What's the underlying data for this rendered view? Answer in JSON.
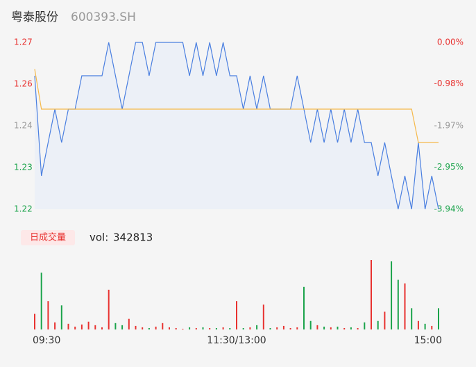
{
  "header": {
    "name": "粤泰股份",
    "code": "600393.SH"
  },
  "chart_data": [
    {
      "type": "line",
      "x": [
        0,
        4,
        8,
        12,
        16,
        20,
        24,
        28,
        32,
        36,
        40,
        44,
        48,
        52,
        56,
        60,
        64,
        68,
        72,
        76,
        80,
        84,
        88,
        92,
        96,
        100,
        104,
        108,
        112,
        116,
        120,
        124,
        128,
        132,
        136,
        140,
        144,
        148,
        152,
        156,
        160,
        164,
        168,
        172,
        176,
        180,
        184,
        188,
        192,
        196,
        200,
        204,
        208,
        212,
        216,
        220,
        224,
        228,
        232,
        236,
        240
      ],
      "xlim": [
        0,
        240
      ],
      "ylim": [
        1.22,
        1.27
      ],
      "yticks": [
        {
          "value": 1.27,
          "label": "1.27"
        },
        {
          "value": 1.2575,
          "label": "1.26"
        },
        {
          "value": 1.245,
          "label": "1.24"
        },
        {
          "value": 1.2325,
          "label": "1.23"
        },
        {
          "value": 1.22,
          "label": "1.22"
        }
      ],
      "y2lim": [
        -3.94,
        0
      ],
      "y2ticks": [
        {
          "value": 0,
          "label": "0.00%"
        },
        {
          "value": -0.98,
          "label": "-0.98%"
        },
        {
          "value": -1.97,
          "label": "-1.97%"
        },
        {
          "value": -2.95,
          "label": "-2.95%"
        },
        {
          "value": -3.94,
          "label": "-3.94%"
        }
      ],
      "tick_colors": [
        "#e8312f",
        "#e8312f",
        "#999999",
        "#1aa34a",
        "#1aa34a"
      ],
      "series": [
        {
          "color": "#4a7fe0",
          "values": [
            1.26,
            1.23,
            1.24,
            1.25,
            1.24,
            1.25,
            1.25,
            1.26,
            1.26,
            1.26,
            1.26,
            1.27,
            1.26,
            1.25,
            1.26,
            1.27,
            1.27,
            1.26,
            1.27,
            1.27,
            1.27,
            1.27,
            1.27,
            1.26,
            1.27,
            1.26,
            1.27,
            1.26,
            1.27,
            1.26,
            1.26,
            1.25,
            1.26,
            1.25,
            1.26,
            1.25,
            1.25,
            1.25,
            1.25,
            1.26,
            1.25,
            1.24,
            1.25,
            1.24,
            1.25,
            1.24,
            1.25,
            1.24,
            1.25,
            1.24,
            1.24,
            1.23,
            1.24,
            1.23,
            1.22,
            1.23,
            1.22,
            1.24,
            1.22,
            1.23,
            1.22
          ]
        },
        {
          "color": "#f5b94a",
          "values": [
            1.262,
            1.25,
            1.25,
            1.25,
            1.25,
            1.25,
            1.25,
            1.25,
            1.25,
            1.25,
            1.25,
            1.25,
            1.25,
            1.25,
            1.25,
            1.25,
            1.25,
            1.25,
            1.25,
            1.25,
            1.25,
            1.25,
            1.25,
            1.25,
            1.25,
            1.25,
            1.25,
            1.25,
            1.25,
            1.25,
            1.25,
            1.25,
            1.25,
            1.25,
            1.25,
            1.25,
            1.25,
            1.25,
            1.25,
            1.25,
            1.25,
            1.25,
            1.25,
            1.25,
            1.25,
            1.25,
            1.25,
            1.25,
            1.25,
            1.25,
            1.25,
            1.25,
            1.25,
            1.25,
            1.25,
            1.25,
            1.25,
            1.24,
            1.24,
            1.24,
            1.24
          ]
        }
      ]
    },
    {
      "type": "bar",
      "legend_label": "日成交量",
      "total_label": "vol:",
      "total_volume": 342813,
      "x": [
        0,
        4,
        8,
        12,
        16,
        20,
        24,
        28,
        32,
        36,
        40,
        44,
        48,
        52,
        56,
        60,
        64,
        68,
        72,
        76,
        80,
        84,
        88,
        92,
        96,
        100,
        104,
        108,
        112,
        116,
        120,
        124,
        128,
        132,
        136,
        140,
        144,
        148,
        152,
        156,
        160,
        164,
        168,
        172,
        176,
        180,
        184,
        188,
        192,
        196,
        200,
        204,
        208,
        212,
        216,
        220,
        224,
        228,
        232,
        236,
        240
      ],
      "xlim": [
        0,
        240
      ],
      "xticks": [
        {
          "value": 0,
          "label": "09:30"
        },
        {
          "value": 120,
          "label": "11:30/13:00"
        },
        {
          "value": 240,
          "label": "15:00"
        }
      ],
      "values": [
        2200,
        8000,
        4000,
        1000,
        3400,
        800,
        400,
        700,
        1100,
        600,
        300,
        5600,
        900,
        600,
        1500,
        500,
        300,
        200,
        400,
        900,
        300,
        200,
        100,
        300,
        200,
        300,
        200,
        200,
        300,
        200,
        4000,
        200,
        300,
        600,
        3500,
        200,
        300,
        500,
        200,
        300,
        6000,
        1200,
        600,
        400,
        300,
        400,
        200,
        300,
        200,
        1000,
        9800,
        1200,
        2500,
        9600,
        7000,
        6500,
        3000,
        1200,
        800,
        500,
        3000
      ],
      "up_color": "#e8312f",
      "down_color": "#1aa34a"
    }
  ]
}
